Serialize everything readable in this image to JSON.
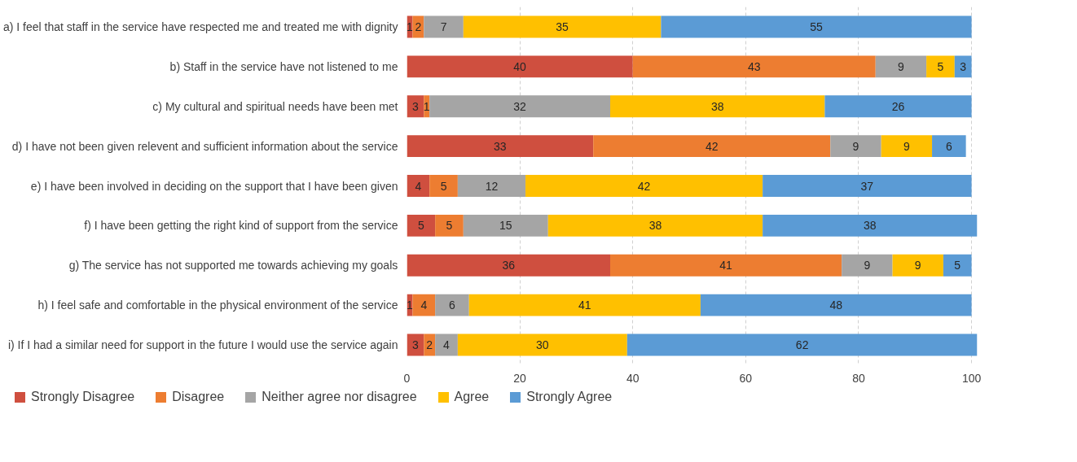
{
  "chart_data": {
    "type": "bar",
    "orientation": "horizontal",
    "stacked": true,
    "data_labels": true,
    "grid": "x",
    "legend": "bottom",
    "categories": [
      "a) I feel that staff in the service have respected me and treated me with dignity",
      "b) Staff in the service have not listened to me",
      "c) My cultural and spiritual needs have been met",
      "d) I have not been given relevent and sufficient information about the service",
      "e) I have been involved in deciding on the support that I have been given",
      "f) I have been getting the right kind of support from the service",
      "g) The service has not supported me towards achieving my goals",
      "h) I feel safe and comfortable in the physical environment of the service",
      "i) If I had a similar need for support in the future I would use the service again"
    ],
    "xlim": [
      0,
      101
    ],
    "xticks": [
      0,
      20,
      40,
      60,
      80,
      100
    ],
    "series": [
      {
        "name": "Strongly Disagree",
        "color": "#cf4f3f",
        "values": [
          1,
          40,
          3,
          33,
          4,
          5,
          36,
          1,
          3
        ]
      },
      {
        "name": "Disagree",
        "color": "#ed7d31",
        "values": [
          2,
          43,
          1,
          42,
          5,
          5,
          41,
          4,
          2
        ]
      },
      {
        "name": "Neither agree nor disagree",
        "color": "#a5a5a5",
        "values": [
          7,
          9,
          32,
          9,
          12,
          15,
          9,
          6,
          4
        ]
      },
      {
        "name": "Agree",
        "color": "#ffc000",
        "values": [
          35,
          5,
          38,
          9,
          42,
          38,
          9,
          41,
          30
        ]
      },
      {
        "name": "Strongly Agree",
        "color": "#5b9bd5",
        "values": [
          55,
          3,
          26,
          6,
          37,
          38,
          5,
          48,
          62
        ]
      }
    ]
  }
}
